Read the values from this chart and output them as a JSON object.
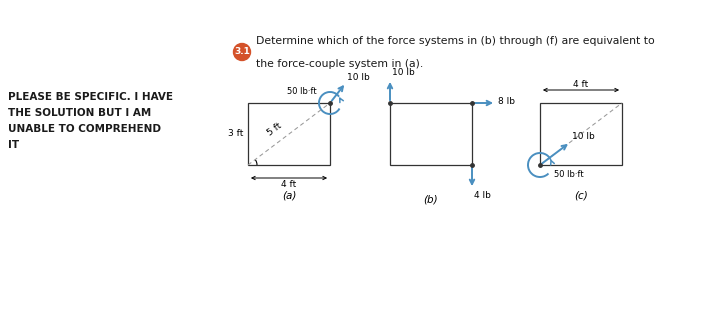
{
  "title_num": "3.1",
  "title_circle_color": "#d4522a",
  "title_text": "Determine which of the force systems in (b) through (f) are equivalent to\nthe force-couple system in (a).",
  "left_text_lines": [
    "PLEASE BE SPECIFIC. I HAVE",
    "THE SOLUTION BUT I AM",
    "UNABLE TO COMPREHEND",
    "IT"
  ],
  "bg_color": "#ffffff",
  "text_color": "#1a1a1a",
  "arrow_color": "#4a8fc0",
  "rect_edge_color": "#333333",
  "label_a": "(a)",
  "label_b": "(b)",
  "label_c": "(c)",
  "font_size_labels": 6.5,
  "font_size_left": 7.5,
  "font_size_title": 7.8,
  "font_size_sub": 8.5
}
